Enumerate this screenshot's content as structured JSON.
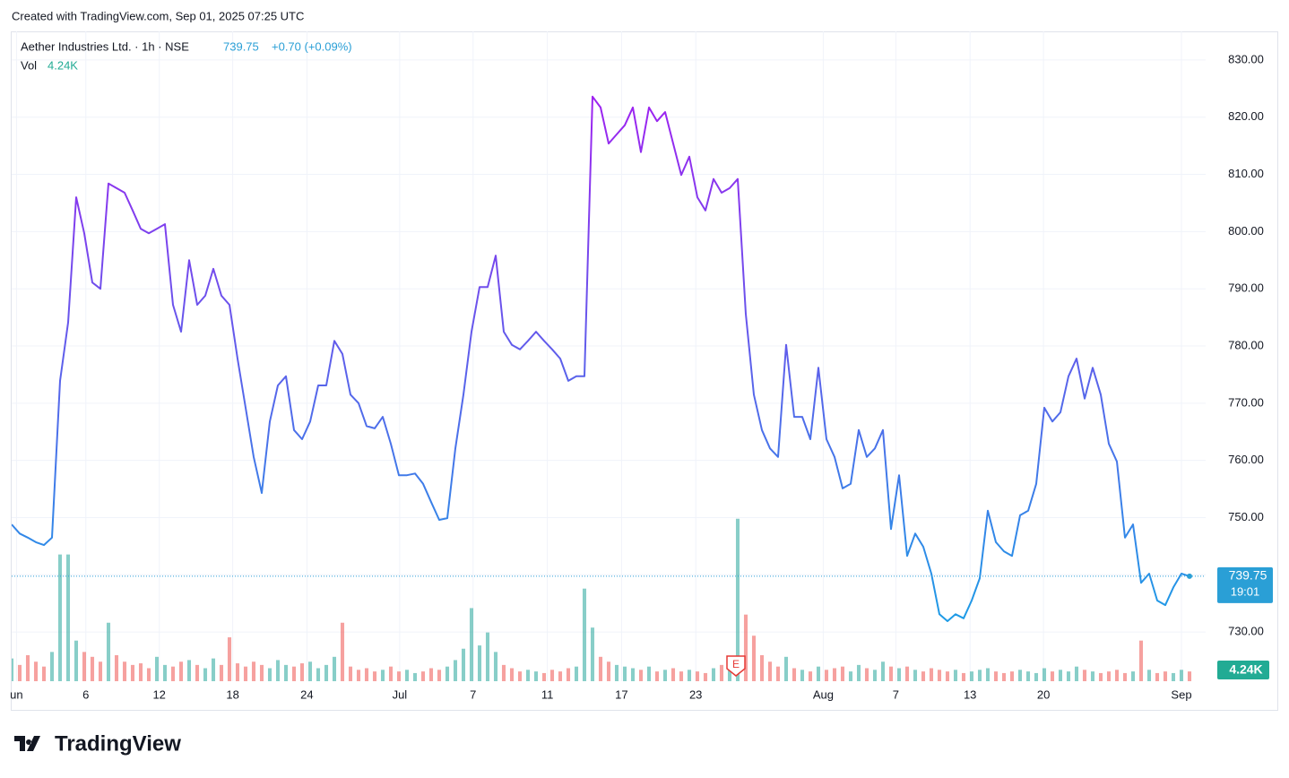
{
  "header": {
    "created_text": "Created with TradingView.com, Sep 01, 2025 07:25 UTC"
  },
  "chart_data": {
    "type": "line",
    "symbol": "Aether Industries Ltd. · 1h · NSE",
    "last_price": 739.75,
    "change": "+0.70 (+0.09%)",
    "volume_title": "Vol",
    "last_volume": "4.24K",
    "countdown": "19:01",
    "earnings_marker": "E",
    "line_colors": [
      "#a020f0",
      "#1e9be6"
    ],
    "last_price_color": "#2a9fd6",
    "volume_label_color": "#22ab94",
    "up_color": "rgba(38,166,154,0.55)",
    "down_color": "rgba(239,83,80,0.55)",
    "grid": true,
    "xlim": [
      0,
      148
    ],
    "xticks": [
      {
        "value": 0.6,
        "label": "un"
      },
      {
        "value": 9.2,
        "label": "6"
      },
      {
        "value": 18.3,
        "label": "12"
      },
      {
        "value": 27.4,
        "label": "18"
      },
      {
        "value": 36.6,
        "label": "24"
      },
      {
        "value": 48.1,
        "label": "Jul"
      },
      {
        "value": 57.2,
        "label": "7"
      },
      {
        "value": 66.4,
        "label": "11"
      },
      {
        "value": 75.6,
        "label": "17"
      },
      {
        "value": 84.8,
        "label": "23"
      },
      {
        "value": 100.6,
        "label": "Aug"
      },
      {
        "value": 109.6,
        "label": "7"
      },
      {
        "value": 118.8,
        "label": "13"
      },
      {
        "value": 127.9,
        "label": "20"
      },
      {
        "value": 145,
        "label": "Sep"
      }
    ],
    "ylim": [
      721.4,
      835.0
    ],
    "yticks": [
      {
        "value": 730,
        "label": "730.00"
      },
      {
        "value": 740,
        "label": "740.00"
      },
      {
        "value": 750,
        "label": "750.00"
      },
      {
        "value": 760,
        "label": "760.00"
      },
      {
        "value": 770,
        "label": "770.00"
      },
      {
        "value": 780,
        "label": "780.00"
      },
      {
        "value": 790,
        "label": "790.00"
      },
      {
        "value": 800,
        "label": "800.00"
      },
      {
        "value": 810,
        "label": "810.00"
      },
      {
        "value": 820,
        "label": "820.00"
      },
      {
        "value": 830,
        "label": "830.00"
      }
    ],
    "values": [
      748.8,
      747.2,
      746.5,
      745.7,
      745.2,
      746.5,
      773.9,
      784.1,
      806.0,
      799.7,
      791.1,
      790.0,
      808.4,
      807.6,
      806.8,
      803.7,
      800.5,
      799.7,
      800.5,
      801.3,
      787.2,
      782.5,
      795.0,
      787.2,
      788.8,
      793.5,
      788.8,
      787.2,
      777.8,
      769.2,
      760.6,
      754.3,
      766.8,
      773.1,
      774.7,
      765.3,
      763.7,
      766.8,
      773.1,
      773.1,
      780.9,
      778.6,
      771.5,
      770.0,
      766.0,
      765.6,
      767.6,
      762.9,
      757.4,
      757.4,
      757.7,
      755.9,
      752.7,
      749.6,
      749.9,
      762.1,
      771.5,
      782.5,
      790.3,
      790.3,
      795.8,
      782.5,
      780.2,
      779.4,
      780.9,
      782.5,
      780.9,
      779.4,
      777.8,
      773.9,
      774.7,
      774.7,
      823.6,
      821.7,
      815.4,
      817.0,
      818.6,
      821.7,
      813.9,
      821.7,
      819.3,
      820.9,
      815.4,
      809.9,
      813.1,
      806.0,
      803.7,
      809.2,
      806.8,
      807.6,
      809.2,
      785.6,
      771.5,
      765.3,
      762.1,
      760.6,
      780.2,
      767.6,
      767.6,
      763.7,
      776.2,
      763.7,
      760.6,
      755.1,
      755.9,
      765.3,
      760.6,
      762.1,
      765.3,
      748.0,
      757.4,
      743.3,
      747.2,
      744.9,
      740.2,
      733.1,
      731.9,
      733.1,
      732.4,
      735.5,
      739.4,
      751.2,
      745.7,
      744.1,
      743.3,
      750.4,
      751.2,
      755.9,
      769.2,
      766.8,
      768.4,
      774.7,
      777.8,
      770.8,
      776.2,
      771.5,
      762.9,
      759.8,
      746.5,
      748.8,
      738.6,
      740.2,
      735.5,
      734.7,
      737.8,
      740.2,
      739.75
    ],
    "volume": {
      "ylim": [
        0,
        40
      ],
      "values": [
        1.4,
        1.0,
        1.6,
        1.2,
        0.9,
        1.8,
        7.8,
        7.8,
        2.5,
        1.8,
        1.5,
        1.2,
        3.6,
        1.6,
        1.2,
        1.0,
        1.1,
        0.8,
        1.5,
        1.0,
        0.9,
        1.2,
        1.3,
        1.0,
        0.8,
        1.4,
        1.0,
        2.7,
        1.1,
        0.9,
        1.2,
        1.0,
        0.8,
        1.3,
        1.0,
        0.9,
        1.1,
        1.2,
        0.8,
        1.0,
        1.5,
        3.6,
        0.9,
        0.7,
        0.8,
        0.6,
        0.7,
        0.9,
        0.6,
        0.7,
        0.5,
        0.6,
        0.8,
        0.7,
        0.9,
        1.3,
        2.0,
        4.5,
        2.2,
        3.0,
        1.8,
        1.0,
        0.8,
        0.6,
        0.7,
        0.6,
        0.5,
        0.7,
        0.6,
        0.8,
        0.9,
        5.7,
        3.3,
        1.5,
        1.2,
        1.0,
        0.9,
        0.8,
        0.7,
        0.9,
        0.6,
        0.7,
        0.8,
        0.6,
        0.7,
        0.6,
        0.5,
        0.8,
        1.0,
        1.5,
        10.0,
        4.1,
        2.8,
        1.6,
        1.2,
        0.9,
        1.5,
        0.8,
        0.7,
        0.6,
        0.9,
        0.7,
        0.8,
        0.9,
        0.6,
        1.0,
        0.8,
        0.7,
        1.2,
        0.9,
        0.8,
        0.9,
        0.7,
        0.6,
        0.8,
        0.7,
        0.6,
        0.7,
        0.5,
        0.6,
        0.7,
        0.8,
        0.6,
        0.5,
        0.6,
        0.7,
        0.6,
        0.5,
        0.8,
        0.6,
        0.7,
        0.6,
        0.9,
        0.7,
        0.6,
        0.5,
        0.6,
        0.7,
        0.5,
        0.6,
        2.5,
        0.7,
        0.5,
        0.6,
        0.5,
        0.7,
        0.6
      ]
    }
  },
  "footer": {
    "logo_text": "TradingView"
  }
}
